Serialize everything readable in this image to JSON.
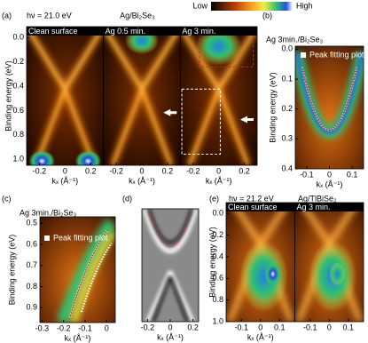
{
  "colorbar": {
    "low": "Low",
    "high": "High"
  },
  "panels": [
    {
      "label": "(a)",
      "notes": [
        "hν = 21.0 eV",
        "Ag/Bi₂Se₃"
      ],
      "ylabel": "Binding energy (eV)",
      "ylim": [
        -0.09,
        1.05
      ],
      "yticks": [
        {
          "value": 0,
          "label": "0.0"
        },
        0.2,
        0.4,
        0.6,
        0.8,
        {
          "value": 1,
          "label": "1.0"
        }
      ],
      "subpanels": [
        {
          "caption": "Clean surface",
          "xlabel": "kₓ (Å⁻¹)",
          "xlim": [
            -0.3,
            0.3
          ],
          "xticks": [
            -0.2,
            0,
            0.2
          ]
        },
        {
          "caption": "Ag 0.5 min.",
          "xlabel": "kₓ (Å⁻¹)",
          "xlim": [
            -0.3,
            0.3
          ],
          "xticks": [
            -0.2,
            0,
            0.2
          ]
        },
        {
          "caption": "Ag 3 min.",
          "xlabel": "kₓ (Å⁻¹)",
          "xlim": [
            -0.3,
            0.3
          ],
          "xticks": [
            -0.2,
            0,
            0.2
          ]
        }
      ]
    },
    {
      "label": "(b)",
      "notes": [
        "Ag 3min./Bi₂Se₃"
      ],
      "legend": "Peak fitting plot",
      "ylabel": "Binding energy (eV)",
      "ylim": [
        -0.01,
        0.4
      ],
      "yticks": [
        {
          "value": 0,
          "label": "0.0"
        },
        0.1,
        0.2,
        0.3,
        0.4
      ],
      "subpanels": [
        {
          "xlabel": "kₓ (Å⁻¹)",
          "xlim": [
            -0.15,
            0.15
          ],
          "xticks": [
            -0.1,
            0,
            0.1
          ]
        }
      ]
    },
    {
      "label": "(c)",
      "notes": [
        "Ag 3min./Bi₂Se₃"
      ],
      "legend": "Peak fitting plot",
      "ylabel": "Binding energy (eV)",
      "ylim": [
        0.47,
        0.97
      ],
      "yticks": [
        0.5,
        0.6,
        0.7,
        0.8,
        0.9
      ],
      "subpanels": [
        {
          "xlabel": "kₓ (Å⁻¹)",
          "xlim": [
            -0.31,
            0.04
          ],
          "xticks": [
            -0.3,
            -0.2,
            -0.1,
            0
          ]
        }
      ]
    },
    {
      "label": "(d)",
      "notes": [],
      "subpanels": [
        {
          "xlabel": "kₓ (Å⁻¹)",
          "xlim": [
            -0.25,
            0.25
          ],
          "xticks": [
            -0.2,
            0,
            0.2
          ]
        }
      ]
    },
    {
      "label": "(e)",
      "notes": [
        "hν = 21.2 eV",
        "Ag/TlBiSe₂"
      ],
      "ylabel": "Binding energy (eV)",
      "ylim": [
        -0.1,
        1.0
      ],
      "yticks": [
        {
          "value": 0,
          "label": "0.0"
        },
        0.2,
        0.4,
        0.6,
        0.8,
        {
          "value": 1,
          "label": "1.0"
        }
      ],
      "subpanels": [
        {
          "caption": "Clean surface",
          "xlabel": "kₓ (Å⁻¹)",
          "xlim": [
            -0.18,
            0.18
          ],
          "xticks": [
            -0.1,
            0,
            0.1
          ]
        },
        {
          "caption": "Ag 3 min.",
          "xlim": [
            -0.18,
            0.18
          ],
          "xticks": [
            -0.1,
            0,
            0.1
          ]
        }
      ]
    }
  ]
}
